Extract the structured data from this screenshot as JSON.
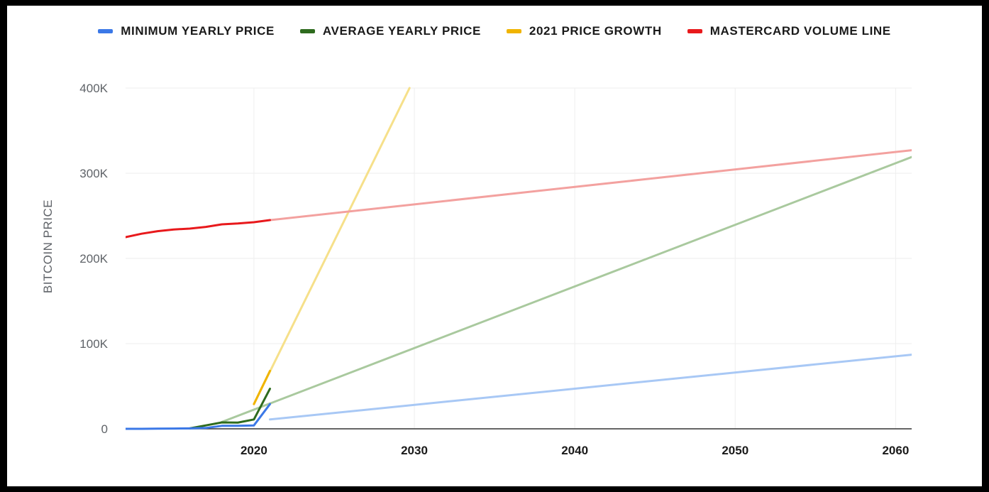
{
  "chart_data": {
    "type": "line",
    "title": "",
    "xlabel": "",
    "ylabel": "BITCOIN PRICE",
    "xlim": [
      2012,
      2061
    ],
    "ylim": [
      0,
      400000
    ],
    "x_ticks": [
      2020,
      2030,
      2040,
      2050,
      2060
    ],
    "x_tick_labels": [
      "2020",
      "2030",
      "2040",
      "2050",
      "2060"
    ],
    "y_ticks": [
      0,
      100000,
      200000,
      300000,
      400000
    ],
    "y_tick_labels": [
      "0",
      "100K",
      "200K",
      "300K",
      "400K"
    ],
    "grid": true,
    "legend_position": "top",
    "series": [
      {
        "name": "MINIMUM YEARLY PRICE",
        "color": "#3b78e7",
        "trend_color": "#a8c8f5",
        "values": [
          [
            2012,
            0
          ],
          [
            2013,
            0
          ],
          [
            2014,
            200
          ],
          [
            2015,
            300
          ],
          [
            2016,
            500
          ],
          [
            2017,
            1000
          ],
          [
            2018,
            3500
          ],
          [
            2019,
            3500
          ],
          [
            2020,
            4000
          ],
          [
            2021,
            29000
          ]
        ],
        "trend": [
          [
            2021,
            11000
          ],
          [
            2061,
            87000
          ]
        ]
      },
      {
        "name": "AVERAGE YEARLY PRICE",
        "color": "#2e6b1e",
        "trend_color": "#a9c99e",
        "values": [
          [
            2016,
            500
          ],
          [
            2017,
            4000
          ],
          [
            2018,
            7500
          ],
          [
            2019,
            7300
          ],
          [
            2020,
            11000
          ],
          [
            2021,
            47000
          ]
        ],
        "trend": [
          [
            2018,
            8000
          ],
          [
            2061,
            319000
          ]
        ]
      },
      {
        "name": "2021 PRICE GROWTH",
        "color": "#f0b400",
        "trend_color": "#f6e08a",
        "values": [
          [
            2020,
            29000
          ],
          [
            2021,
            68000
          ]
        ],
        "trend": [
          [
            2020,
            29000
          ],
          [
            2029.7,
            400000
          ]
        ]
      },
      {
        "name": "MASTERCARD VOLUME LINE",
        "color": "#e8191c",
        "trend_color": "#f3a19f",
        "values": [
          [
            2012,
            225000
          ],
          [
            2013,
            229000
          ],
          [
            2014,
            232000
          ],
          [
            2015,
            234000
          ],
          [
            2016,
            235000
          ],
          [
            2017,
            237000
          ],
          [
            2018,
            240000
          ],
          [
            2019,
            241000
          ],
          [
            2020,
            242500
          ],
          [
            2021,
            245000
          ]
        ],
        "trend": [
          [
            2021,
            245000
          ],
          [
            2061,
            327000
          ]
        ]
      }
    ]
  }
}
